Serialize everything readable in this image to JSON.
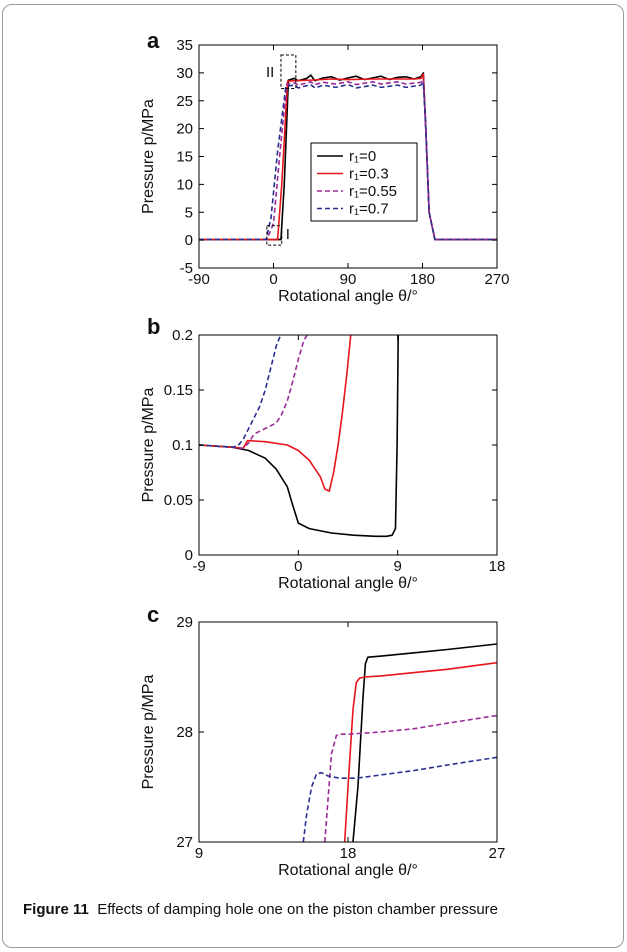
{
  "caption": {
    "label": "Figure 11",
    "text": "Effects of damping hole one on the piston chamber pressure"
  },
  "chart_data": [
    {
      "panel": "a",
      "type": "line",
      "xlabel": "Rotational angle θ/°",
      "ylabel": "Pressure p/MPa",
      "xlim": [
        -90,
        270
      ],
      "ylim": [
        -5,
        35
      ],
      "xticks": [
        -90,
        0,
        90,
        180,
        270
      ],
      "yticks": [
        -5,
        0,
        5,
        10,
        15,
        20,
        25,
        30,
        35
      ],
      "legend_position": "center",
      "annotations": [
        "I",
        "II"
      ],
      "series": [
        {
          "name": "r₁=0",
          "color": "#000000",
          "dash": "solid",
          "x": [
            -90,
            -5,
            9,
            13,
            18,
            25,
            30,
            40,
            45,
            50,
            60,
            70,
            80,
            90,
            100,
            110,
            120,
            130,
            140,
            150,
            160,
            170,
            178,
            181,
            184,
            188,
            195,
            270
          ],
          "y": [
            0.1,
            0.1,
            0.1,
            10,
            28.7,
            29.0,
            28.6,
            29.0,
            29.6,
            28.6,
            29.1,
            29.3,
            28.7,
            29.1,
            29.4,
            28.8,
            29.1,
            29.4,
            28.8,
            29.2,
            29.3,
            28.9,
            29.3,
            30.0,
            20,
            5,
            0.1,
            0.1
          ]
        },
        {
          "name": "r₁=0.3",
          "color": "#e8141b",
          "dash": "solid",
          "x": [
            -90,
            -5,
            3,
            5,
            10,
            17,
            25,
            45,
            70,
            90,
            120,
            150,
            170,
            178,
            181,
            184,
            188,
            195,
            270
          ],
          "y": [
            0.1,
            0.1,
            0.06,
            0.2,
            10,
            28.5,
            28.6,
            28.7,
            28.9,
            28.8,
            28.9,
            28.9,
            28.9,
            29.0,
            29.8,
            20,
            5,
            0.1,
            0.1
          ]
        },
        {
          "name": "r₁=0.55",
          "color": "#9b2a9b",
          "dash": "dashed",
          "x": [
            -90,
            -8,
            0,
            8,
            16,
            25,
            30,
            45,
            50,
            60,
            75,
            90,
            100,
            120,
            130,
            150,
            160,
            178,
            181,
            184,
            188,
            195,
            270
          ],
          "y": [
            0.1,
            0.1,
            3,
            16,
            28.0,
            28.2,
            27.8,
            28.4,
            27.9,
            28.3,
            28.0,
            28.4,
            27.9,
            28.4,
            28.0,
            28.4,
            28.0,
            28.3,
            28.8,
            20,
            5,
            0.1,
            0.1
          ]
        },
        {
          "name": "r₁=0.7",
          "color": "#2a2f8f",
          "dash": "dashed",
          "x": [
            -90,
            -9,
            -3,
            5,
            15,
            25,
            30,
            45,
            50,
            60,
            75,
            90,
            100,
            120,
            130,
            150,
            160,
            178,
            181,
            184,
            188,
            195,
            270
          ],
          "y": [
            0.1,
            0.1,
            4,
            16,
            27.6,
            27.8,
            27.3,
            27.9,
            27.3,
            27.8,
            27.4,
            27.9,
            27.3,
            27.8,
            27.4,
            27.8,
            27.4,
            27.8,
            28.3,
            20,
            5,
            0.1,
            0.1
          ]
        }
      ]
    },
    {
      "panel": "b",
      "type": "line",
      "xlabel": "Rotational angle θ/°",
      "ylabel": "Pressure p/MPa",
      "xlim": [
        -9,
        18
      ],
      "ylim": [
        0,
        0.2
      ],
      "xticks": [
        -9,
        0,
        9,
        18
      ],
      "yticks": [
        0,
        0.05,
        0.1,
        0.15,
        0.2
      ],
      "series": [
        {
          "name": "r₁=0",
          "color": "#000000",
          "dash": "solid",
          "x": [
            -9,
            -6,
            -4.5,
            -3,
            -2,
            -1,
            -0.5,
            0,
            1,
            3,
            5,
            7,
            8,
            8.5,
            8.8,
            8.95,
            9.05
          ],
          "y": [
            0.1,
            0.098,
            0.095,
            0.088,
            0.078,
            0.062,
            0.045,
            0.029,
            0.024,
            0.02,
            0.018,
            0.017,
            0.017,
            0.018,
            0.024,
            0.1,
            0.2
          ]
        },
        {
          "name": "r₁=0.3",
          "color": "#e8141b",
          "dash": "solid",
          "x": [
            -9,
            -6,
            -5,
            -4.6,
            -3,
            -1,
            0,
            1,
            2,
            2.4,
            2.8,
            3.2,
            3.6,
            4.0,
            4.4,
            4.75
          ],
          "y": [
            0.1,
            0.098,
            0.097,
            0.104,
            0.103,
            0.1,
            0.095,
            0.086,
            0.071,
            0.06,
            0.058,
            0.075,
            0.1,
            0.13,
            0.165,
            0.2
          ]
        },
        {
          "name": "r₁=0.55",
          "color": "#9b2a9b",
          "dash": "dashed",
          "x": [
            -9,
            -6,
            -5,
            -4.5,
            -4,
            -3,
            -2,
            -1.5,
            -1,
            -0.5,
            0,
            0.5,
            0.8
          ],
          "y": [
            0.1,
            0.098,
            0.097,
            0.102,
            0.11,
            0.115,
            0.12,
            0.128,
            0.14,
            0.158,
            0.178,
            0.195,
            0.2
          ]
        },
        {
          "name": "r₁=0.7",
          "color": "#2a2f8f",
          "dash": "dashed",
          "x": [
            -9,
            -6,
            -5.5,
            -5,
            -4.5,
            -4,
            -3.5,
            -3,
            -2.5,
            -2,
            -1.6
          ],
          "y": [
            0.1,
            0.098,
            0.099,
            0.105,
            0.115,
            0.125,
            0.135,
            0.15,
            0.17,
            0.19,
            0.2
          ]
        }
      ]
    },
    {
      "panel": "c",
      "type": "line",
      "xlabel": "Rotational angle θ/°",
      "ylabel": "Pressure p/MPa",
      "xlim": [
        9,
        27
      ],
      "ylim": [
        27,
        29
      ],
      "xticks": [
        9,
        18,
        27
      ],
      "yticks": [
        27,
        28,
        29
      ],
      "series": [
        {
          "name": "r₁=0",
          "color": "#000000",
          "dash": "solid",
          "x": [
            18.3,
            18.6,
            18.9,
            19.05,
            19.2,
            20,
            22,
            24,
            27
          ],
          "y": [
            27,
            27.5,
            28.3,
            28.62,
            28.68,
            28.69,
            28.72,
            28.75,
            28.8
          ]
        },
        {
          "name": "r₁=0.3",
          "color": "#e8141b",
          "dash": "solid",
          "x": [
            17.8,
            18.0,
            18.3,
            18.5,
            18.7,
            19.0,
            20,
            22,
            24,
            27
          ],
          "y": [
            27,
            27.5,
            28.2,
            28.45,
            28.49,
            28.5,
            28.51,
            28.54,
            28.57,
            28.63
          ]
        },
        {
          "name": "r₁=0.55",
          "color": "#9b2a9b",
          "dash": "dashed",
          "x": [
            16.6,
            16.8,
            17.0,
            17.3,
            17.6,
            18,
            20,
            22,
            24,
            27
          ],
          "y": [
            27,
            27.4,
            27.8,
            27.97,
            27.98,
            27.98,
            28.0,
            28.03,
            28.08,
            28.15
          ]
        },
        {
          "name": "r₁=0.7",
          "color": "#2a2f8f",
          "dash": "dashed",
          "x": [
            15.3,
            15.5,
            15.8,
            16.1,
            16.4,
            16.8,
            17.5,
            18.5,
            20,
            22,
            24,
            27
          ],
          "y": [
            27,
            27.25,
            27.5,
            27.62,
            27.63,
            27.6,
            27.58,
            27.58,
            27.61,
            27.65,
            27.7,
            27.77
          ]
        }
      ]
    }
  ]
}
